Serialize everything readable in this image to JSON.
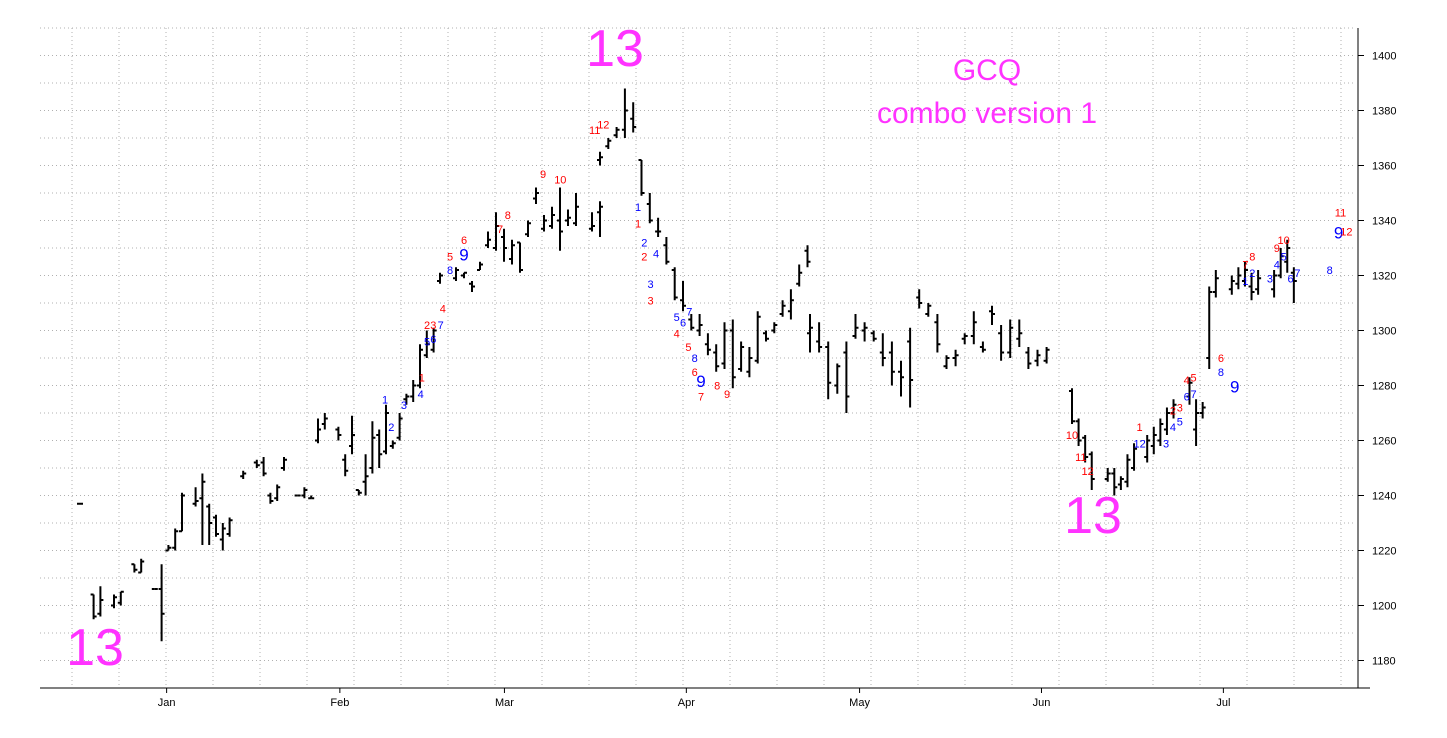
{
  "chart_data": {
    "type": "ohlc",
    "title": [
      "GCQ",
      "combo version 1"
    ],
    "colors": {
      "title": "#ff33ff",
      "sell_count": "#ff0000",
      "buy_count": "#0000ff",
      "bars": "#000000"
    },
    "ylim": [
      1170,
      1410
    ],
    "y_ticks": [
      1180,
      1200,
      1220,
      1240,
      1260,
      1280,
      1300,
      1320,
      1340,
      1360,
      1380,
      1400
    ],
    "x_range": [
      0,
      142
    ],
    "x_ticks": [
      {
        "label": "Jan",
        "x": 10
      },
      {
        "label": "Feb",
        "x": 30
      },
      {
        "label": "Mar",
        "x": 49
      },
      {
        "label": "Apr",
        "x": 70
      },
      {
        "label": "May",
        "x": 90
      },
      {
        "label": "Jun",
        "x": 111
      },
      {
        "label": "Jul",
        "x": 132
      }
    ],
    "bars": [
      [
        0,
        1237,
        1237,
        1237,
        1237
      ],
      [
        2,
        1204,
        1195,
        1204,
        1196
      ],
      [
        3,
        1207,
        1196,
        1197,
        1202
      ],
      [
        5,
        1204,
        1199,
        1200,
        1203
      ],
      [
        6,
        1205,
        1200,
        1201,
        1205
      ],
      [
        8,
        1215,
        1212,
        1215,
        1213
      ],
      [
        9,
        1217,
        1212,
        1212,
        1216
      ],
      [
        11,
        1206,
        1206,
        1206,
        1206
      ],
      [
        12,
        1215,
        1187,
        1206,
        1197
      ],
      [
        13,
        1222,
        1220,
        1220,
        1221
      ],
      [
        14,
        1228,
        1220,
        1221,
        1227
      ],
      [
        15,
        1241,
        1227,
        1227,
        1240
      ],
      [
        17,
        1243,
        1236,
        1237,
        1238
      ],
      [
        18,
        1248,
        1222,
        1239,
        1245
      ],
      [
        19,
        1237,
        1222,
        1236,
        1230
      ],
      [
        20,
        1233,
        1225,
        1232,
        1226
      ],
      [
        21,
        1230,
        1220,
        1224,
        1228
      ],
      [
        22,
        1232,
        1225,
        1226,
        1231
      ],
      [
        24,
        1249,
        1246,
        1247,
        1248
      ],
      [
        26,
        1253,
        1250,
        1252,
        1251
      ],
      [
        27,
        1254,
        1247,
        1252,
        1248
      ],
      [
        28,
        1241,
        1237,
        1240,
        1238
      ],
      [
        29,
        1244,
        1238,
        1239,
        1243
      ],
      [
        30,
        1254,
        1249,
        1250,
        1253
      ],
      [
        32,
        1240,
        1240,
        1240,
        1240
      ],
      [
        33,
        1243,
        1239,
        1240,
        1242
      ],
      [
        34,
        1240,
        1239,
        1239,
        1239
      ],
      [
        35,
        1268,
        1259,
        1260,
        1264
      ],
      [
        36,
        1270,
        1264,
        1266,
        1268
      ],
      [
        38,
        1265,
        1260,
        1264,
        1262
      ],
      [
        39,
        1255,
        1247,
        1253,
        1249
      ],
      [
        40,
        1269,
        1255,
        1258,
        1262
      ],
      [
        41,
        1242,
        1240,
        1242,
        1241
      ],
      [
        42,
        1255,
        1240,
        1245,
        1247
      ],
      [
        43,
        1267,
        1248,
        1250,
        1261
      ],
      [
        44,
        1264,
        1250,
        1262,
        1255
      ],
      [
        45,
        1273,
        1255,
        1256,
        1270
      ],
      [
        46,
        1260,
        1257,
        1258,
        1259
      ],
      [
        47,
        1270,
        1260,
        1261,
        1268
      ],
      [
        48,
        1277,
        1273,
        1275,
        1276
      ],
      [
        49,
        1282,
        1274,
        1276,
        1280
      ],
      [
        50,
        1295,
        1279,
        1280,
        1293
      ],
      [
        51,
        1300,
        1290,
        1291,
        1295
      ],
      [
        52,
        1301,
        1292,
        1293,
        1300
      ],
      [
        53,
        1321,
        1317,
        1318,
        1320
      ],
      [
        55,
        1323,
        1318,
        1319,
        1322
      ],
      [
        56,
        1321,
        1319,
        1320,
        1321
      ],
      [
        57,
        1318,
        1314,
        1317,
        1316
      ],
      [
        58,
        1325,
        1322,
        1322,
        1324
      ],
      [
        59,
        1336,
        1330,
        1331,
        1333
      ],
      [
        60,
        1343,
        1329,
        1330,
        1338
      ],
      [
        61,
        1337,
        1325,
        1334,
        1330
      ],
      [
        62,
        1333,
        1324,
        1326,
        1331
      ],
      [
        63,
        1332,
        1321,
        1332,
        1322
      ],
      [
        64,
        1340,
        1334,
        1335,
        1339
      ],
      [
        65,
        1352,
        1346,
        1348,
        1350
      ],
      [
        66,
        1342,
        1336,
        1337,
        1340
      ],
      [
        67,
        1345,
        1337,
        1338,
        1342
      ],
      [
        68,
        1352,
        1329,
        1340,
        1336
      ],
      [
        69,
        1344,
        1338,
        1340,
        1341
      ],
      [
        70,
        1350,
        1338,
        1339,
        1345
      ],
      [
        72,
        1343,
        1336,
        1337,
        1338
      ],
      [
        73,
        1347,
        1334,
        1343,
        1345
      ],
      [
        74,
        1365,
        1360,
        1362,
        1363
      ],
      [
        75,
        1370,
        1366,
        1367,
        1369
      ],
      [
        76,
        1374,
        1370,
        1371,
        1373
      ],
      [
        77,
        1388,
        1370,
        1373,
        1380
      ],
      [
        78,
        1383,
        1372,
        1377,
        1374
      ],
      [
        79,
        1362,
        1349,
        1362,
        1350
      ],
      [
        80,
        1350,
        1339,
        1346,
        1340
      ],
      [
        81,
        1341,
        1334,
        1336,
        1336
      ],
      [
        82,
        1334,
        1324,
        1331,
        1325
      ],
      [
        83,
        1323,
        1311,
        1322,
        1312
      ],
      [
        84,
        1318,
        1307,
        1311,
        1309
      ],
      [
        85,
        1306,
        1300,
        1304,
        1301
      ],
      [
        86,
        1306,
        1298,
        1300,
        1302
      ],
      [
        87,
        1299,
        1291,
        1295,
        1293
      ],
      [
        88,
        1295,
        1285,
        1292,
        1287
      ],
      [
        89,
        1303,
        1286,
        1288,
        1300
      ],
      [
        90,
        1304,
        1279,
        1300,
        1283
      ],
      [
        91,
        1296,
        1285,
        1286,
        1294
      ],
      [
        92,
        1294,
        1283,
        1285,
        1290
      ],
      [
        93,
        1307,
        1288,
        1289,
        1305
      ],
      [
        94,
        1300,
        1296,
        1299,
        1297
      ],
      [
        95,
        1303,
        1299,
        1300,
        1302
      ],
      [
        96,
        1311,
        1305,
        1306,
        1309
      ],
      [
        97,
        1315,
        1304,
        1307,
        1311
      ],
      [
        98,
        1324,
        1316,
        1317,
        1321
      ],
      [
        99,
        1331,
        1323,
        1329,
        1325
      ],
      [
        101,
        1306,
        1292,
        1299,
        1301
      ],
      [
        102,
        1303,
        1292,
        1296,
        1294
      ],
      [
        103,
        1296,
        1275,
        1294,
        1281
      ],
      [
        104,
        1288,
        1277,
        1280,
        1287
      ],
      [
        105,
        1296,
        1270,
        1292,
        1276
      ],
      [
        106,
        1306,
        1297,
        1298,
        1301
      ],
      [
        107,
        1303,
        1296,
        1300,
        1301
      ],
      [
        108,
        1300,
        1296,
        1299,
        1297
      ],
      [
        109,
        1299,
        1287,
        1292,
        1290
      ],
      [
        110,
        1296,
        1280,
        1292,
        1285
      ],
      [
        111,
        1289,
        1276,
        1285,
        1283
      ],
      [
        112,
        1301,
        1272,
        1296,
        1282
      ],
      [
        113,
        1315,
        1308,
        1312,
        1310
      ],
      [
        114,
        1310,
        1305,
        1306,
        1309
      ],
      [
        115,
        1306,
        1292,
        1303,
        1295
      ],
      [
        116,
        1291,
        1286,
        1287,
        1290
      ],
      [
        117,
        1293,
        1287,
        1290,
        1291
      ],
      [
        118,
        1299,
        1295,
        1297,
        1298
      ],
      [
        119,
        1307,
        1295,
        1298,
        1303
      ],
      [
        120,
        1296,
        1292,
        1294,
        1293
      ],
      [
        121,
        1309,
        1302,
        1307,
        1306
      ],
      [
        122,
        1302,
        1289,
        1299,
        1292
      ],
      [
        123,
        1304,
        1290,
        1292,
        1301
      ],
      [
        124,
        1304,
        1294,
        1297,
        1299
      ],
      [
        125,
        1294,
        1286,
        1292,
        1288
      ],
      [
        126,
        1293,
        1287,
        1289,
        1291
      ],
      [
        127,
        1294,
        1288,
        1289,
        1293
      ]
    ],
    "bars_part2": [
      [
        113.5,
        1279,
        1266,
        1278,
        1267
      ],
      [
        114.2,
        1268,
        1258,
        1267,
        1260
      ],
      [
        114.9,
        1262,
        1252,
        1261,
        1254
      ],
      [
        115.6,
        1256,
        1242,
        1255,
        1246
      ],
      [
        117.3,
        1250,
        1245,
        1246,
        1248
      ],
      [
        118.0,
        1250,
        1240,
        1248,
        1243
      ],
      [
        118.7,
        1247,
        1242,
        1244,
        1246
      ],
      [
        119.4,
        1255,
        1243,
        1245,
        1253
      ],
      [
        120.1,
        1259,
        1249,
        1250,
        1257
      ],
      [
        121.5,
        1262,
        1252,
        1254,
        1260
      ],
      [
        122.2,
        1265,
        1255,
        1258,
        1262
      ],
      [
        122.9,
        1268,
        1258,
        1260,
        1266
      ],
      [
        123.6,
        1272,
        1262,
        1264,
        1270
      ],
      [
        124.3,
        1275,
        1268,
        1270,
        1273
      ],
      [
        126.0,
        1283,
        1273,
        1276,
        1281
      ],
      [
        126.7,
        1275,
        1258,
        1264,
        1270
      ],
      [
        127.4,
        1274,
        1268,
        1270,
        1272
      ],
      [
        128.1,
        1316,
        1286,
        1290,
        1314
      ],
      [
        128.8,
        1322,
        1312,
        1314,
        1319
      ],
      [
        130.5,
        1320,
        1313,
        1315,
        1318
      ],
      [
        131.2,
        1323,
        1315,
        1317,
        1320
      ],
      [
        131.9,
        1325,
        1316,
        1318,
        1322
      ],
      [
        132.6,
        1321,
        1311,
        1316,
        1314
      ],
      [
        133.3,
        1322,
        1313,
        1315,
        1319
      ],
      [
        135.0,
        1322,
        1312,
        1315,
        1320
      ],
      [
        135.7,
        1330,
        1319,
        1320,
        1327
      ],
      [
        136.4,
        1333,
        1321,
        1325,
        1330
      ],
      [
        137.1,
        1323,
        1310,
        1321,
        1318
      ]
    ],
    "annotations_big": [
      {
        "text": "13",
        "x": 2.5,
        "y": 1188
      },
      {
        "text": "13",
        "x": 60.5,
        "y": 1395
      },
      {
        "text": "13",
        "x": 115.0,
        "y": 1231
      }
    ],
    "counts": [
      {
        "t": "1",
        "x": 42.8,
        "y": 1275,
        "c": "b"
      },
      {
        "t": "2",
        "x": 43.4,
        "y": 1265,
        "c": "b"
      },
      {
        "t": "3",
        "x": 44.6,
        "y": 1273,
        "c": "b"
      },
      {
        "t": "1",
        "x": 46.3,
        "y": 1283,
        "c": "r"
      },
      {
        "t": "4",
        "x": 46.2,
        "y": 1277,
        "c": "b"
      },
      {
        "t": "5",
        "x": 46.8,
        "y": 1296,
        "c": "b"
      },
      {
        "t": "6",
        "x": 47.4,
        "y": 1297,
        "c": "b"
      },
      {
        "t": "2",
        "x": 46.8,
        "y": 1302,
        "c": "r"
      },
      {
        "t": "3",
        "x": 47.4,
        "y": 1302,
        "c": "r"
      },
      {
        "t": "7",
        "x": 48.1,
        "y": 1302,
        "c": "b"
      },
      {
        "t": "4",
        "x": 48.3,
        "y": 1308,
        "c": "r"
      },
      {
        "t": "8",
        "x": 49.0,
        "y": 1322,
        "c": "b"
      },
      {
        "t": "5",
        "x": 49.0,
        "y": 1327,
        "c": "r"
      },
      {
        "t": "6",
        "x": 51.8,
        "y": 1333,
        "c": "r"
      },
      {
        "t": "9",
        "x": 51.8,
        "y": 1327,
        "c": "b",
        "big": true
      },
      {
        "t": "7",
        "x": 56.0,
        "y": 1337,
        "c": "r"
      },
      {
        "t": "8",
        "x": 56.9,
        "y": 1342,
        "c": "r"
      },
      {
        "t": "9",
        "x": 61.0,
        "y": 1357,
        "c": "r"
      },
      {
        "t": "10",
        "x": 63.0,
        "y": 1355,
        "c": "r"
      },
      {
        "t": "11",
        "x": 67.0,
        "y": 1373,
        "c": "r"
      },
      {
        "t": "12",
        "x": 68.0,
        "y": 1375,
        "c": "r"
      },
      {
        "t": "1",
        "x": 71.3,
        "y": 1345,
        "c": "b"
      },
      {
        "t": "1",
        "x": 71.3,
        "y": 1339,
        "c": "r"
      },
      {
        "t": "2",
        "x": 72.0,
        "y": 1332,
        "c": "b"
      },
      {
        "t": "2",
        "x": 72.0,
        "y": 1327,
        "c": "r"
      },
      {
        "t": "4",
        "x": 73.3,
        "y": 1328,
        "c": "b"
      },
      {
        "t": "3",
        "x": 72.7,
        "y": 1317,
        "c": "b"
      },
      {
        "t": "3",
        "x": 72.7,
        "y": 1311,
        "c": "r"
      },
      {
        "t": "5",
        "x": 75.6,
        "y": 1305,
        "c": "b"
      },
      {
        "t": "6",
        "x": 76.3,
        "y": 1303,
        "c": "b"
      },
      {
        "t": "4",
        "x": 75.6,
        "y": 1299,
        "c": "r"
      },
      {
        "t": "7",
        "x": 77.0,
        "y": 1307,
        "c": "b"
      },
      {
        "t": "5",
        "x": 76.9,
        "y": 1294,
        "c": "r"
      },
      {
        "t": "8",
        "x": 77.6,
        "y": 1290,
        "c": "b"
      },
      {
        "t": "6",
        "x": 77.6,
        "y": 1285,
        "c": "r"
      },
      {
        "t": "9",
        "x": 78.3,
        "y": 1281,
        "c": "b",
        "big": true
      },
      {
        "t": "7",
        "x": 78.3,
        "y": 1276,
        "c": "r"
      },
      {
        "t": "8",
        "x": 80.1,
        "y": 1280,
        "c": "r"
      },
      {
        "t": "9",
        "x": 81.2,
        "y": 1277,
        "c": "r"
      },
      {
        "t": "10",
        "x": 119.8,
        "y": 1262,
        "c": "r"
      },
      {
        "t": "11",
        "x": 120.7,
        "y": 1254,
        "c": "r"
      },
      {
        "t": "12",
        "x": 121.4,
        "y": 1249,
        "c": "r"
      },
      {
        "t": "1",
        "x": 126.7,
        "y": 1265,
        "c": "r"
      },
      {
        "t": "12",
        "x": 126.7,
        "y": 1259,
        "c": "b"
      },
      {
        "t": "3",
        "x": 129.4,
        "y": 1259,
        "c": "b"
      },
      {
        "t": "4",
        "x": 130.1,
        "y": 1265,
        "c": "b"
      },
      {
        "t": "5",
        "x": 130.8,
        "y": 1267,
        "c": "b"
      },
      {
        "t": "2",
        "x": 130.1,
        "y": 1271,
        "c": "r"
      },
      {
        "t": "3",
        "x": 130.8,
        "y": 1272,
        "c": "r"
      },
      {
        "t": "6",
        "x": 131.5,
        "y": 1276,
        "c": "b"
      },
      {
        "t": "7",
        "x": 132.2,
        "y": 1277,
        "c": "b"
      },
      {
        "t": "4",
        "x": 131.5,
        "y": 1282,
        "c": "r"
      },
      {
        "t": "5",
        "x": 132.2,
        "y": 1283,
        "c": "r"
      },
      {
        "t": "6",
        "x": 135.0,
        "y": 1290,
        "c": "r"
      },
      {
        "t": "8",
        "x": 135.0,
        "y": 1285,
        "c": "b"
      },
      {
        "t": "9",
        "x": 136.4,
        "y": 1279,
        "c": "b",
        "big": true
      },
      {
        "t": "1",
        "x": 137.5,
        "y": 1318,
        "c": "b"
      },
      {
        "t": "2",
        "x": 138.2,
        "y": 1321,
        "c": "b"
      },
      {
        "t": "7",
        "x": 137.5,
        "y": 1324,
        "c": "r"
      },
      {
        "t": "8",
        "x": 138.2,
        "y": 1327,
        "c": "r"
      },
      {
        "t": "3",
        "x": 140.0,
        "y": 1319,
        "c": "b"
      },
      {
        "t": "4",
        "x": 140.7,
        "y": 1324,
        "c": "b"
      },
      {
        "t": "5",
        "x": 141.4,
        "y": 1327,
        "c": "b"
      },
      {
        "t": "9",
        "x": 140.7,
        "y": 1330,
        "c": "r"
      },
      {
        "t": "10",
        "x": 141.4,
        "y": 1333,
        "c": "r"
      },
      {
        "t": "6",
        "x": 142.1,
        "y": 1319,
        "c": "b"
      },
      {
        "t": "7",
        "x": 142.8,
        "y": 1321,
        "c": "b"
      },
      {
        "t": "8",
        "x": 146.1,
        "y": 1322,
        "c": "b"
      },
      {
        "t": "11",
        "x": 147.2,
        "y": 1343,
        "c": "r"
      },
      {
        "t": "9",
        "x": 147.0,
        "y": 1335,
        "c": "b",
        "big": true
      },
      {
        "t": "12",
        "x": 147.8,
        "y": 1336,
        "c": "r"
      }
    ]
  }
}
